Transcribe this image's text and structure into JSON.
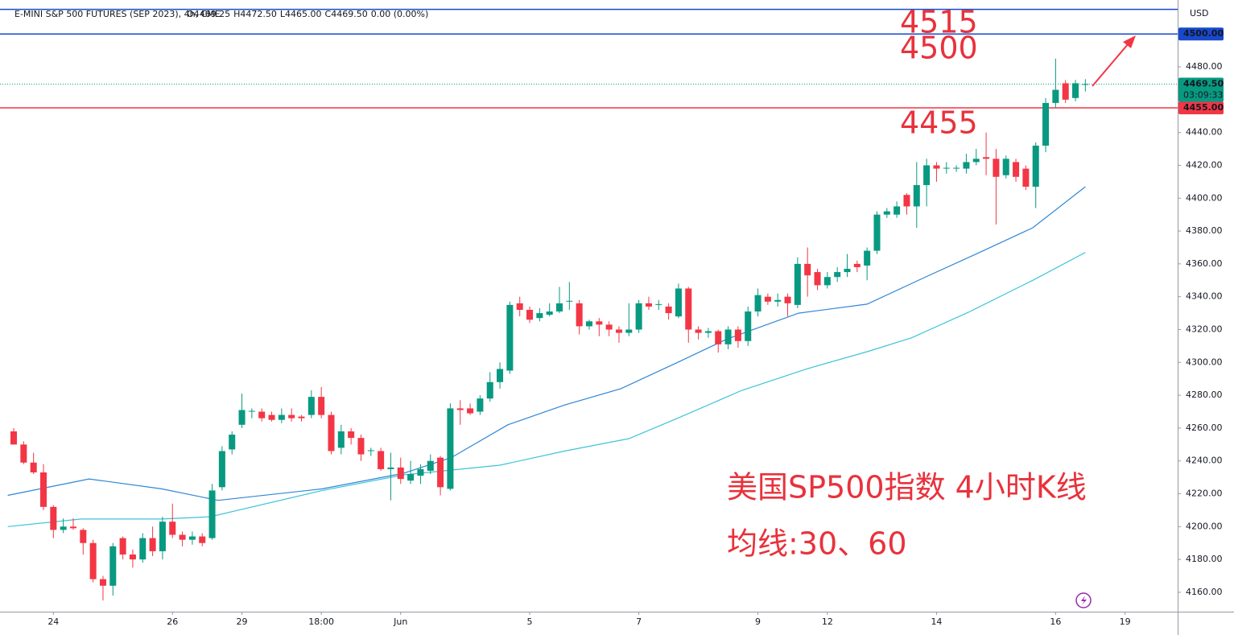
{
  "chart_data": {
    "type": "candlestick",
    "title": "E-MINI S&P 500 FUTURES (SEP 2023), 4h, CME",
    "ohlc_legend": [
      "O4469.25",
      "H4472.50",
      "L4465.00",
      "C4469.50",
      "0.00 (0.00%)"
    ],
    "currency": "USD",
    "up_color": "#089981",
    "down_color": "#f23645",
    "open": [
      4258,
      4250,
      4239,
      4233,
      4212,
      4198,
      4200,
      4198,
      4190,
      4168,
      4164,
      4193,
      4183,
      4180,
      4193,
      4185,
      4203,
      4195,
      4192,
      4194,
      4193,
      4224,
      4247,
      4262,
      4270,
      4270,
      4268,
      4265,
      4268,
      4267,
      4268,
      4279,
      4268,
      4248,
      4258,
      4254,
      4246,
      4246,
      4235,
      4236,
      4228,
      4231,
      4234,
      4242,
      4223,
      4272,
      4272,
      4270,
      4278,
      4288,
      4295,
      4336,
      4332,
      4327,
      4329,
      4331,
      4337,
      4336,
      4322,
      4325,
      4323,
      4320,
      4318,
      4320,
      4336,
      4335,
      4334,
      4328,
      4345,
      4320,
      4318,
      4319,
      4311,
      4320,
      4313,
      4331,
      4340,
      4337,
      4340,
      4335,
      4360,
      4355,
      4347,
      4352,
      4355,
      4360,
      4359,
      4368,
      4390,
      4390,
      4402,
      4395,
      4408,
      4420,
      4418,
      4418,
      4418,
      4422,
      4425,
      4424,
      4414,
      4422,
      4418,
      4407,
      4432,
      4458,
      4470,
      4461,
      4469.25
    ],
    "high": [
      4260,
      4252,
      4245,
      4238,
      4213,
      4205,
      4205,
      4199,
      4192,
      4170,
      4190,
      4194,
      4186,
      4196,
      4200,
      4206,
      4214,
      4197,
      4197,
      4196,
      4226,
      4249,
      4258,
      4281,
      4272,
      4272,
      4270,
      4272,
      4272,
      4268,
      4283,
      4285,
      4270,
      4262,
      4260,
      4256,
      4248,
      4248,
      4245,
      4242,
      4240,
      4238,
      4244,
      4243,
      4275,
      4277,
      4275,
      4280,
      4294,
      4300,
      4337,
      4340,
      4334,
      4333,
      4336,
      4346,
      4349,
      4338,
      4326,
      4327,
      4325,
      4322,
      4336,
      4338,
      4340,
      4338,
      4336,
      4348,
      4346,
      4322,
      4321,
      4320,
      4322,
      4322,
      4334,
      4345,
      4342,
      4342,
      4342,
      4364,
      4370,
      4357,
      4355,
      4358,
      4366,
      4362,
      4370,
      4392,
      4394,
      4398,
      4403,
      4422,
      4424,
      4422,
      4422,
      4420,
      4427,
      4430,
      4440,
      4430,
      4426,
      4424,
      4420,
      4434,
      4461,
      4485,
      4472,
      4472,
      4472.5
    ],
    "low": [
      4250,
      4238,
      4232,
      4210,
      4193,
      4196,
      4198,
      4183,
      4166,
      4155,
      4158,
      4180,
      4175,
      4178,
      4182,
      4180,
      4193,
      4188,
      4189,
      4188,
      4192,
      4222,
      4244,
      4260,
      4266,
      4264,
      4264,
      4263,
      4264,
      4264,
      4266,
      4266,
      4244,
      4244,
      4250,
      4240,
      4243,
      4234,
      4216,
      4226,
      4226,
      4226,
      4232,
      4219,
      4222,
      4262,
      4268,
      4268,
      4276,
      4284,
      4293,
      4328,
      4324,
      4325,
      4328,
      4330,
      4332,
      4317,
      4320,
      4316,
      4316,
      4312,
      4316,
      4318,
      4332,
      4332,
      4326,
      4327,
      4312,
      4314,
      4315,
      4306,
      4308,
      4309,
      4310,
      4328,
      4335,
      4334,
      4328,
      4333,
      4340,
      4344,
      4345,
      4349,
      4352,
      4355,
      4350,
      4366,
      4388,
      4388,
      4390,
      4382,
      4395,
      4410,
      4415,
      4416,
      4415,
      4420,
      4414,
      4384,
      4412,
      4410,
      4405,
      4394,
      4428,
      4455,
      4458,
      4459,
      4465
    ],
    "close": [
      4250,
      4239,
      4233,
      4212,
      4198,
      4200,
      4199,
      4190,
      4168,
      4164,
      4188,
      4183,
      4180,
      4193,
      4185,
      4203,
      4195,
      4192,
      4194,
      4190,
      4222,
      4246,
      4256,
      4271,
      4270.5,
      4266,
      4265,
      4268,
      4266,
      4266,
      4279,
      4268,
      4246,
      4258,
      4254,
      4244,
      4246.5,
      4235,
      4236,
      4229,
      4232,
      4235,
      4240,
      4224,
      4272,
      4271,
      4269,
      4278,
      4288,
      4296,
      4335,
      4332,
      4326,
      4330,
      4331,
      4336,
      4337.5,
      4322,
      4325,
      4323,
      4320,
      4318,
      4320,
      4336,
      4334,
      4335.5,
      4330,
      4345,
      4320,
      4318,
      4319,
      4311,
      4320,
      4313,
      4331,
      4341,
      4337,
      4338,
      4336,
      4360,
      4353,
      4347,
      4352,
      4355,
      4357,
      4358,
      4368,
      4390,
      4392,
      4395,
      4395,
      4408,
      4420,
      4418,
      4418.5,
      4418.5,
      4422,
      4424,
      4424,
      4413,
      4424,
      4413,
      4407,
      4432,
      4458,
      4466,
      4460,
      4470,
      4469.5
    ],
    "ma_lines": [
      {
        "color": "#2f86d6",
        "x": [
          -0.6,
          7.6,
          14.9,
          20.6,
          31.1,
          39.3,
          44.1,
          49.8,
          55.5,
          61.2,
          66.9,
          71.8,
          79.1,
          86,
          92.1,
          97,
          102.7,
          108
        ],
        "values": [
          4219,
          4229,
          4223,
          4216,
          4223,
          4232.5,
          4242,
          4262,
          4274,
          4284,
          4300,
          4314,
          4330,
          4335.5,
          4352.6,
          4366,
          4382,
          4407
        ]
      },
      {
        "color": "#3cc3d8",
        "x": [
          -0.6,
          6.8,
          14.9,
          19.8,
          31.1,
          39.3,
          49,
          55.5,
          62,
          66.9,
          73.4,
          79.9,
          86,
          90.5,
          96.2,
          102.7,
          108
        ],
        "values": [
          4200,
          4204.6,
          4204.6,
          4206,
          4222,
          4231.5,
          4237.4,
          4246,
          4253.6,
          4266,
          4283,
          4296,
          4306.5,
          4315,
          4330.5,
          4350,
          4367
        ]
      }
    ],
    "xlim": [
      -1.38,
      117.3
    ],
    "xticks": [
      {
        "value": 4,
        "label": "24"
      },
      {
        "value": 16,
        "label": "26"
      },
      {
        "value": 23,
        "label": "29"
      },
      {
        "value": 31,
        "label": "18:00"
      },
      {
        "value": 39,
        "label": "Jun"
      },
      {
        "value": 52,
        "label": "5"
      },
      {
        "value": 63,
        "label": "7"
      },
      {
        "value": 75,
        "label": "9"
      },
      {
        "value": 82,
        "label": "12"
      },
      {
        "value": 93,
        "label": "14"
      },
      {
        "value": 105,
        "label": "16"
      },
      {
        "value": 112,
        "label": "19"
      }
    ],
    "ylim": [
      4148.2,
      4520.7
    ],
    "yticks": [
      {
        "value": 4160,
        "label": "4160.00"
      },
      {
        "value": 4180,
        "label": "4180.00"
      },
      {
        "value": 4200,
        "label": "4200.00"
      },
      {
        "value": 4220,
        "label": "4220.00"
      },
      {
        "value": 4240,
        "label": "4240.00"
      },
      {
        "value": 4260,
        "label": "4260.00"
      },
      {
        "value": 4280,
        "label": "4280.00"
      },
      {
        "value": 4300,
        "label": "4300.00"
      },
      {
        "value": 4320,
        "label": "4320.00"
      },
      {
        "value": 4340,
        "label": "4340.00"
      },
      {
        "value": 4360,
        "label": "4360.00"
      },
      {
        "value": 4380,
        "label": "4380.00"
      },
      {
        "value": 4400,
        "label": "4400.00"
      },
      {
        "value": 4420,
        "label": "4420.00"
      },
      {
        "value": 4440,
        "label": "4440.00"
      },
      {
        "value": 4460,
        "label": "4460.00"
      },
      {
        "value": 4480,
        "label": "4480.00"
      }
    ],
    "hlines": [
      {
        "value": 4515,
        "color": "#1848cc"
      },
      {
        "value": 4500,
        "label": "4500.00",
        "color": "#1848cc"
      },
      {
        "value": 4455,
        "label": "4455.00",
        "color": "#f23645"
      }
    ],
    "last_price": {
      "value": 4469.5,
      "label": "4469.50",
      "countdown": "03:09:33",
      "color": "#089981"
    },
    "annotations": [
      "4515",
      "4500",
      "4455",
      "美国SP500指数 4小时K线",
      "均线:30、60"
    ]
  }
}
